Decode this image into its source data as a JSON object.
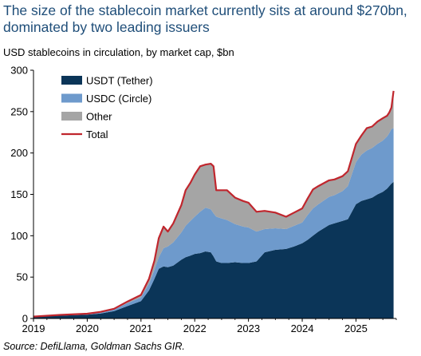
{
  "chart_data": {
    "type": "area",
    "title": "The size of the stablecoin market currently sits at around $270bn, dominated by two leading issuers",
    "subtitle": "USD stablecoins in circulation, by market cap, $bn",
    "source": "Source: DefiLlama, Goldman Sachs GIR.",
    "xlabel": "",
    "ylabel": "",
    "x_ticks": [
      "2019",
      "2020",
      "2021",
      "2022",
      "2023",
      "2024",
      "2025"
    ],
    "y_ticks": [
      "0",
      "50",
      "100",
      "150",
      "200",
      "250",
      "300"
    ],
    "xlim": [
      2019.0,
      2025.75
    ],
    "ylim": [
      0,
      300
    ],
    "stacked": true,
    "legend_position": "top-left",
    "colors": {
      "USDT": "#0b3558",
      "USDC": "#6e9acc",
      "Other": "#a5a5a5",
      "Total": "#c0262d"
    },
    "x": [
      2019.0,
      2019.5,
      2020.0,
      2020.25,
      2020.5,
      2020.75,
      2021.0,
      2021.15,
      2021.25,
      2021.33,
      2021.42,
      2021.5,
      2021.6,
      2021.75,
      2021.83,
      2021.92,
      2022.0,
      2022.1,
      2022.2,
      2022.3,
      2022.35,
      2022.4,
      2022.5,
      2022.6,
      2022.75,
      2022.9,
      2023.0,
      2023.15,
      2023.3,
      2023.5,
      2023.7,
      2023.85,
      2024.0,
      2024.1,
      2024.2,
      2024.3,
      2024.5,
      2024.6,
      2024.75,
      2024.85,
      2025.0,
      2025.1,
      2025.2,
      2025.3,
      2025.4,
      2025.5,
      2025.58,
      2025.62,
      2025.66,
      2025.7
    ],
    "series": [
      {
        "name": "USDT (Tether)",
        "values": [
          1.8,
          3.5,
          4.5,
          6,
          9,
          15,
          21,
          34,
          48,
          60,
          63,
          62,
          64,
          71,
          74,
          76,
          78,
          79,
          81,
          80,
          75,
          69,
          67,
          67,
          68,
          67,
          67,
          69,
          80,
          83,
          84,
          87,
          91,
          95,
          100,
          105,
          113,
          115,
          118,
          120,
          138,
          142,
          144,
          146,
          150,
          153,
          157,
          160,
          163,
          165
        ]
      },
      {
        "name": "USDC (Circle)",
        "values": [
          0.3,
          0.5,
          0.8,
          1,
          1.8,
          3.5,
          4.5,
          8,
          11,
          14,
          22,
          25,
          28,
          33,
          38,
          42,
          45,
          50,
          53,
          52,
          52,
          54,
          54,
          52,
          46,
          44,
          43,
          36,
          28,
          26,
          24,
          25,
          25,
          30,
          33,
          33,
          34,
          34,
          36,
          40,
          51,
          56,
          59,
          60,
          61,
          62,
          63,
          64,
          66,
          65
        ]
      },
      {
        "name": "Other",
        "values": [
          0.2,
          0.3,
          0.5,
          1,
          1,
          2,
          3,
          6,
          11,
          23,
          26,
          18,
          23,
          33,
          43,
          46,
          51,
          55,
          52,
          55,
          57,
          32,
          34,
          36,
          32,
          31,
          30,
          24,
          22,
          19,
          15,
          16,
          17,
          20,
          23,
          22,
          20,
          19,
          18,
          18,
          22,
          23,
          27,
          26,
          27,
          27,
          25,
          25,
          26,
          45
        ]
      }
    ],
    "total": {
      "name": "Total",
      "values": [
        2.3,
        4.3,
        5.8,
        8,
        11.8,
        20.5,
        28.5,
        48,
        70,
        97,
        111,
        105,
        115,
        137,
        155,
        164,
        174,
        184,
        186,
        187,
        184,
        155,
        155,
        155,
        146,
        142,
        140,
        129,
        130,
        128,
        123,
        128,
        133,
        145,
        156,
        160,
        167,
        168,
        172,
        178,
        211,
        221,
        230,
        232,
        238,
        242,
        245,
        249,
        255,
        275
      ]
    }
  }
}
